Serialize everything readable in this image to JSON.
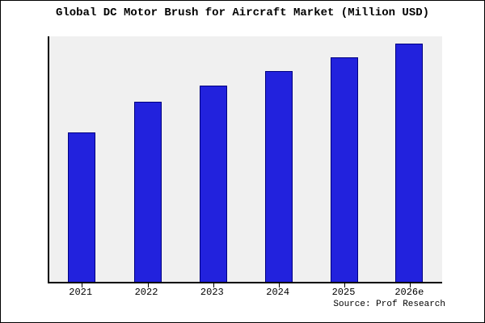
{
  "title": "Global DC Motor Brush for Aircraft Market (Million USD)",
  "source": "Source: Prof Research",
  "colors": {
    "bar_fill": "#2222dd",
    "bar_edge": "#000080",
    "plot_bg": "#f0f0f0",
    "axis": "#000000",
    "background": "#ffffff"
  },
  "chart_data": {
    "type": "bar",
    "categories": [
      "2021",
      "2022",
      "2023",
      "2024",
      "2025",
      "2026e"
    ],
    "values": [
      64,
      77,
      84,
      90,
      96,
      102
    ],
    "title": "Global DC Motor Brush for Aircraft Market (Million USD)",
    "xlabel": "",
    "ylabel": "",
    "ylim": [
      0,
      105
    ],
    "grid": false,
    "legend": false,
    "annotation": "Source: Prof Research"
  }
}
